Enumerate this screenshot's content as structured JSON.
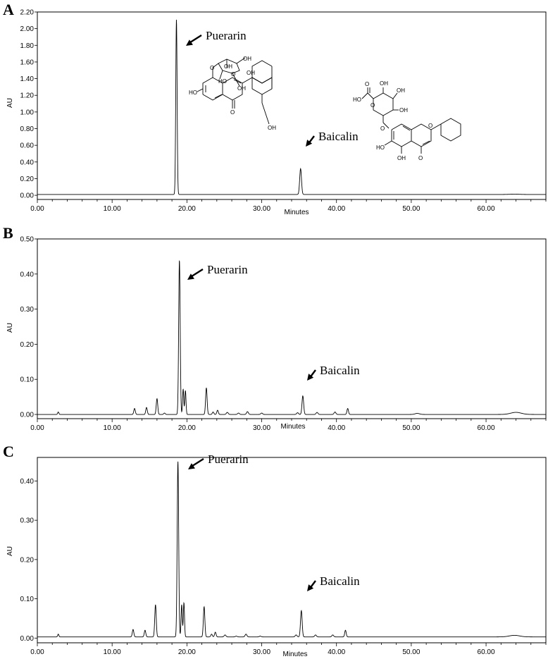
{
  "chart_data": [
    {
      "panel": "A",
      "type": "line",
      "xlabel": "Minutes",
      "ylabel": "AU",
      "xlim": [
        0,
        68
      ],
      "ylim": [
        -0.05,
        2.2
      ],
      "xticks": [
        0,
        10,
        20,
        30,
        40,
        50,
        60
      ],
      "xtick_labels": [
        "0.00",
        "10.00",
        "20.00",
        "30.00",
        "40.00",
        "50.00",
        "60.00"
      ],
      "yticks": [
        0,
        0.2,
        0.4,
        0.6,
        0.8,
        1.0,
        1.2,
        1.4,
        1.6,
        1.8,
        2.0,
        2.2
      ],
      "ytick_labels": [
        "0.00",
        "0.20",
        "0.40",
        "0.60",
        "0.80",
        "1.00",
        "1.20",
        "1.40",
        "1.60",
        "1.80",
        "2.00",
        "2.20"
      ],
      "baseline": 0.01,
      "peaks": [
        {
          "x": 18.6,
          "y": 2.11,
          "w": 0.09
        },
        {
          "x": 35.2,
          "y": 0.32,
          "w": 0.12
        },
        {
          "x": 63.8,
          "y": 0.014,
          "w": 0.6
        }
      ],
      "annotations": [
        {
          "text": "Puerarin",
          "x": 18.6
        },
        {
          "text": "Baicalin",
          "x": 35.2
        }
      ]
    },
    {
      "panel": "B",
      "type": "line",
      "xlabel": "Minutes",
      "ylabel": "AU",
      "xlim": [
        0,
        68
      ],
      "ylim": [
        -0.012,
        0.5
      ],
      "xticks": [
        0,
        10,
        20,
        30,
        40,
        50,
        60
      ],
      "xtick_labels": [
        "0.00",
        "10.00",
        "20.00",
        "30.00",
        "40.00",
        "50.00",
        "60.00"
      ],
      "yticks": [
        0,
        0.1,
        0.2,
        0.3,
        0.4,
        0.5
      ],
      "ytick_labels": [
        "0.00",
        "0.10",
        "0.20",
        "0.30",
        "0.40",
        "0.50"
      ],
      "baseline": 0.0,
      "peaks": [
        {
          "x": 2.8,
          "y": 0.007,
          "w": 0.08
        },
        {
          "x": 13.0,
          "y": 0.017,
          "w": 0.1
        },
        {
          "x": 14.6,
          "y": 0.02,
          "w": 0.1
        },
        {
          "x": 16.0,
          "y": 0.045,
          "w": 0.1
        },
        {
          "x": 17.0,
          "y": 0.004,
          "w": 0.1
        },
        {
          "x": 19.0,
          "y": 0.44,
          "w": 0.1
        },
        {
          "x": 19.5,
          "y": 0.072,
          "w": 0.08
        },
        {
          "x": 19.8,
          "y": 0.068,
          "w": 0.08
        },
        {
          "x": 22.6,
          "y": 0.076,
          "w": 0.1
        },
        {
          "x": 23.5,
          "y": 0.007,
          "w": 0.1
        },
        {
          "x": 24.1,
          "y": 0.012,
          "w": 0.1
        },
        {
          "x": 25.4,
          "y": 0.006,
          "w": 0.12
        },
        {
          "x": 26.9,
          "y": 0.004,
          "w": 0.12
        },
        {
          "x": 28.1,
          "y": 0.008,
          "w": 0.12
        },
        {
          "x": 30.0,
          "y": 0.004,
          "w": 0.12
        },
        {
          "x": 34.8,
          "y": 0.005,
          "w": 0.12
        },
        {
          "x": 35.5,
          "y": 0.053,
          "w": 0.11
        },
        {
          "x": 37.4,
          "y": 0.006,
          "w": 0.12
        },
        {
          "x": 39.8,
          "y": 0.007,
          "w": 0.12
        },
        {
          "x": 41.5,
          "y": 0.017,
          "w": 0.1
        },
        {
          "x": 50.8,
          "y": 0.003,
          "w": 0.3
        },
        {
          "x": 64.0,
          "y": 0.006,
          "w": 0.7
        }
      ],
      "annotations": [
        {
          "text": "Puerarin",
          "x": 19.0
        },
        {
          "text": "Baicalin",
          "x": 35.5
        }
      ]
    },
    {
      "panel": "C",
      "type": "line",
      "xlabel": "Minutes",
      "ylabel": "AU",
      "xlim": [
        0,
        68
      ],
      "ylim": [
        -0.012,
        0.46
      ],
      "xticks": [
        0,
        10,
        20,
        30,
        40,
        50,
        60
      ],
      "xtick_labels": [
        "0.00",
        "10.00",
        "20.00",
        "30.00",
        "40.00",
        "50.00",
        "60.00"
      ],
      "yticks": [
        0,
        0.1,
        0.2,
        0.3,
        0.4
      ],
      "ytick_labels": [
        "0.00",
        "0.10",
        "0.20",
        "0.30",
        "0.40"
      ],
      "baseline": 0.003,
      "peaks": [
        {
          "x": 2.8,
          "y": 0.01,
          "w": 0.08
        },
        {
          "x": 12.8,
          "y": 0.022,
          "w": 0.1
        },
        {
          "x": 14.4,
          "y": 0.02,
          "w": 0.1
        },
        {
          "x": 15.8,
          "y": 0.085,
          "w": 0.1
        },
        {
          "x": 18.8,
          "y": 0.45,
          "w": 0.1
        },
        {
          "x": 19.3,
          "y": 0.085,
          "w": 0.08
        },
        {
          "x": 19.6,
          "y": 0.09,
          "w": 0.08
        },
        {
          "x": 22.3,
          "y": 0.08,
          "w": 0.1
        },
        {
          "x": 23.3,
          "y": 0.01,
          "w": 0.1
        },
        {
          "x": 23.8,
          "y": 0.015,
          "w": 0.1
        },
        {
          "x": 25.1,
          "y": 0.008,
          "w": 0.12
        },
        {
          "x": 26.6,
          "y": 0.005,
          "w": 0.12
        },
        {
          "x": 27.9,
          "y": 0.01,
          "w": 0.12
        },
        {
          "x": 29.8,
          "y": 0.005,
          "w": 0.12
        },
        {
          "x": 34.6,
          "y": 0.008,
          "w": 0.12
        },
        {
          "x": 35.3,
          "y": 0.07,
          "w": 0.11
        },
        {
          "x": 37.2,
          "y": 0.008,
          "w": 0.12
        },
        {
          "x": 39.5,
          "y": 0.008,
          "w": 0.12
        },
        {
          "x": 41.2,
          "y": 0.02,
          "w": 0.1
        },
        {
          "x": 50.7,
          "y": 0.003,
          "w": 0.3
        },
        {
          "x": 63.8,
          "y": 0.007,
          "w": 0.7
        }
      ],
      "annotations": [
        {
          "text": "Puerarin",
          "x": 18.8
        },
        {
          "text": "Baicalin",
          "x": 35.3
        }
      ]
    }
  ],
  "structures": {
    "puerarin_labels": [
      "OH",
      "O",
      "OH",
      "OH",
      "HO",
      "OH",
      "HO",
      "O",
      "O",
      "OH"
    ],
    "baicalin_labels": [
      "O",
      "HO",
      "OH",
      "OH",
      "OH",
      "O",
      "O",
      "O",
      "HO",
      "OH",
      "O"
    ]
  }
}
